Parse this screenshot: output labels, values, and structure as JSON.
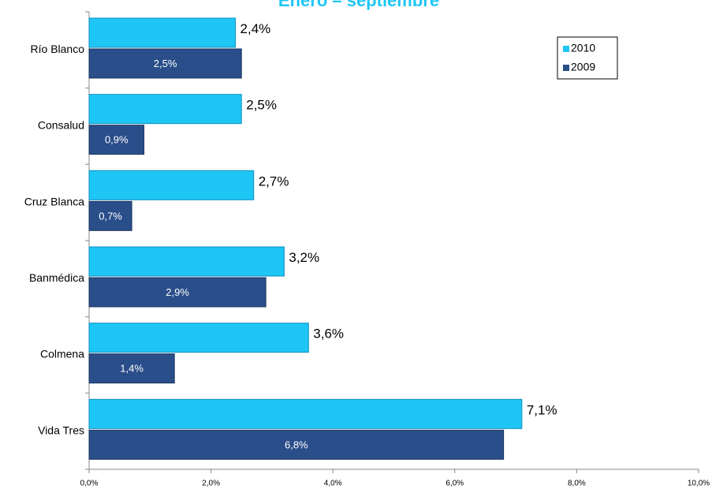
{
  "chart_data": {
    "type": "bar",
    "orientation": "horizontal",
    "title": "Enero – septiembre",
    "categories": [
      "Río Blanco",
      "Consalud",
      "Cruz Blanca",
      "Banmédica",
      "Colmena",
      "Vida Tres"
    ],
    "series": [
      {
        "name": "2010",
        "color": "#1ec6f5",
        "values": [
          2.4,
          2.5,
          2.7,
          3.2,
          3.6,
          7.1
        ],
        "value_labels": [
          "2,4%",
          "2,5%",
          "2,7%",
          "3,2%",
          "3,6%",
          "7,1%"
        ]
      },
      {
        "name": "2009",
        "color": "#2a4e89",
        "values": [
          2.5,
          0.9,
          0.7,
          2.9,
          1.4,
          6.8
        ],
        "value_labels": [
          "2,5%",
          "0,9%",
          "0,7%",
          "2,9%",
          "1,4%",
          "6,8%"
        ]
      }
    ],
    "xlim": [
      0,
      10
    ],
    "xticks": [
      {
        "value": 0,
        "label": "0,0%"
      },
      {
        "value": 2,
        "label": "2,0%"
      },
      {
        "value": 4,
        "label": "4,0%"
      },
      {
        "value": 6,
        "label": "6,0%"
      },
      {
        "value": 8,
        "label": "8,0%"
      },
      {
        "value": 10,
        "label": "10,0%"
      }
    ],
    "legend": "upper right"
  }
}
